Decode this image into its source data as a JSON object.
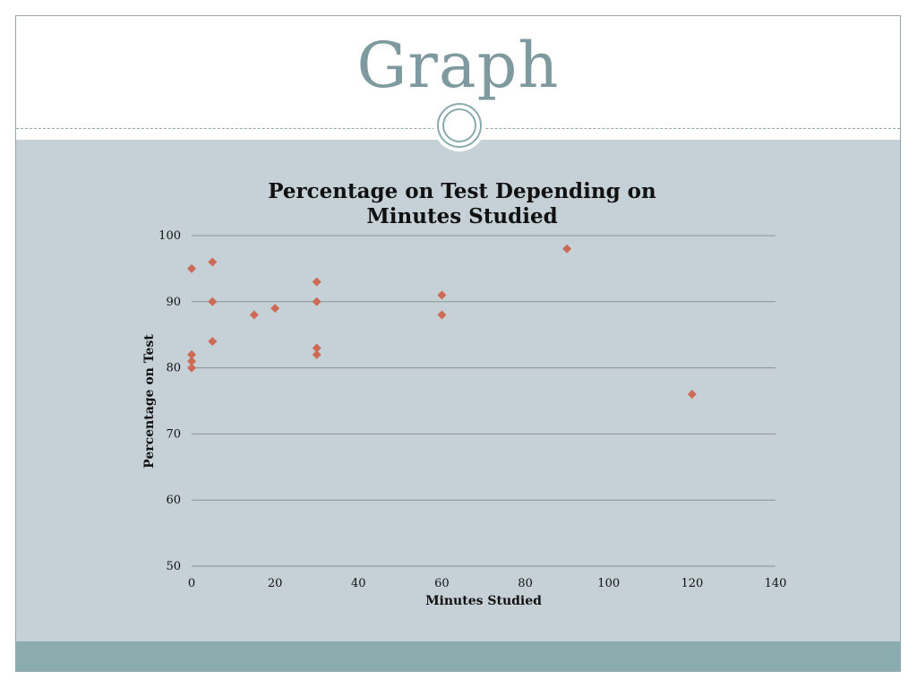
{
  "slide": {
    "title": "Graph"
  },
  "colors": {
    "title": "#7e9a9e",
    "body_background": "#c5d1d7",
    "footer_bar": "#8aacae",
    "marker": "#cd6a55",
    "gridline": "#8c9194"
  },
  "chart_data": {
    "type": "scatter",
    "title": "Percentage on Test Depending on Minutes Studied",
    "title_lines": [
      "Percentage on Test Depending on",
      "Minutes Studied"
    ],
    "xlabel": "Minutes Studied",
    "ylabel": "Percentage on Test",
    "xlim": [
      0,
      140
    ],
    "ylim": [
      50,
      100
    ],
    "xticks": [
      0,
      20,
      40,
      60,
      80,
      100,
      120,
      140
    ],
    "yticks": [
      50,
      60,
      70,
      80,
      90,
      100
    ],
    "grid": "horizontal",
    "legend": "none",
    "marker": "diamond",
    "points": [
      {
        "x": 0,
        "y": 95
      },
      {
        "x": 0,
        "y": 82
      },
      {
        "x": 0,
        "y": 81
      },
      {
        "x": 0,
        "y": 80
      },
      {
        "x": 5,
        "y": 96
      },
      {
        "x": 5,
        "y": 90
      },
      {
        "x": 5,
        "y": 84
      },
      {
        "x": 15,
        "y": 88
      },
      {
        "x": 20,
        "y": 89
      },
      {
        "x": 30,
        "y": 93
      },
      {
        "x": 30,
        "y": 90
      },
      {
        "x": 30,
        "y": 83
      },
      {
        "x": 30,
        "y": 82
      },
      {
        "x": 60,
        "y": 91
      },
      {
        "x": 60,
        "y": 88
      },
      {
        "x": 90,
        "y": 98
      },
      {
        "x": 120,
        "y": 76
      }
    ]
  }
}
